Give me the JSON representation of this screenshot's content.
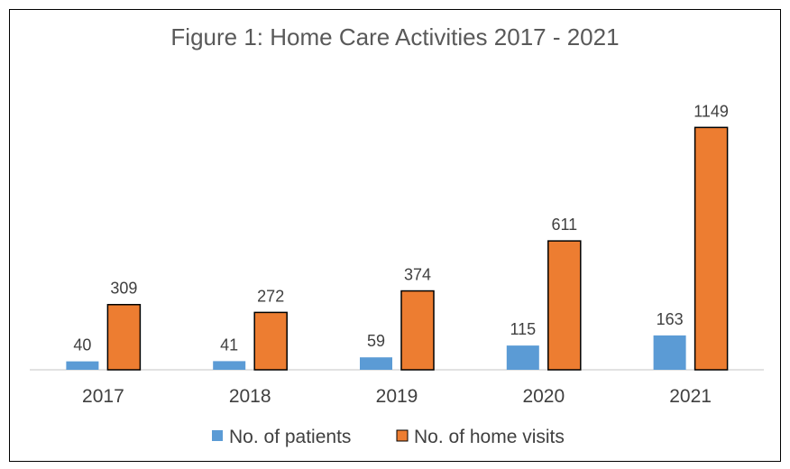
{
  "chart_data": {
    "type": "bar",
    "title": "Figure 1: Home Care Activities 2017 - 2021",
    "categories": [
      "2017",
      "2018",
      "2019",
      "2020",
      "2021"
    ],
    "series": [
      {
        "name": "No. of patients",
        "values": [
          40,
          41,
          59,
          115,
          163
        ],
        "color": "#5b9bd5"
      },
      {
        "name": "No. of home visits",
        "values": [
          309,
          272,
          374,
          611,
          1149
        ],
        "color": "#ed7d31"
      }
    ],
    "xlabel": "",
    "ylabel": "",
    "ylim": [
      0,
      1300
    ],
    "grid": false,
    "data_labels": true,
    "legend_position": "bottom"
  }
}
